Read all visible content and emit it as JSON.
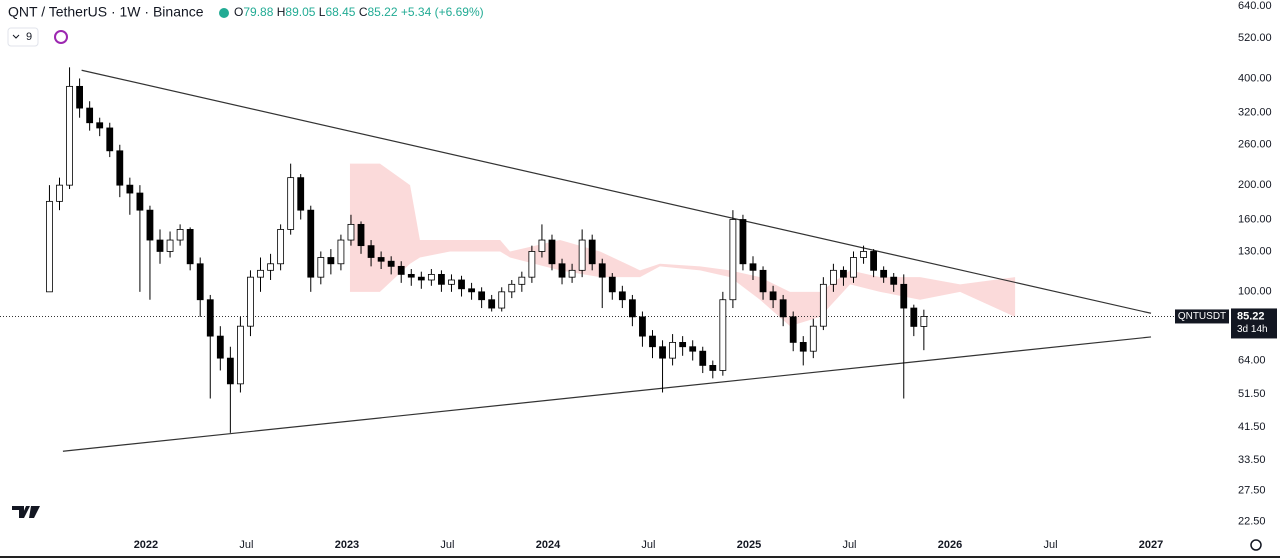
{
  "chart_data": {
    "type": "candlestick",
    "title": "QNT / TetherUS · 1W · Binance",
    "legend_labels": {
      "open": "O",
      "high": "H",
      "low": "L",
      "close": "C"
    },
    "change": "+5.34",
    "change_pct": "(+6.69%)",
    "indicator_count": 9,
    "symbol_tag": "QNTUSDT",
    "countdown": "3d 14h",
    "log_scale": true,
    "up_color": "#ffffff",
    "down_color": "#000000",
    "wick_color": "#000000",
    "x": [
      2021.52,
      2021.57,
      2021.62,
      2021.67,
      2021.72,
      2021.77,
      2021.82,
      2021.87,
      2021.92,
      2021.97,
      2022.02,
      2022.07,
      2022.12,
      2022.17,
      2022.22,
      2022.27,
      2022.32,
      2022.37,
      2022.42,
      2022.47,
      2022.52,
      2022.57,
      2022.62,
      2022.67,
      2022.72,
      2022.77,
      2022.82,
      2022.87,
      2022.92,
      2022.97,
      2023.02,
      2023.07,
      2023.12,
      2023.17,
      2023.22,
      2023.27,
      2023.32,
      2023.37,
      2023.42,
      2023.47,
      2023.52,
      2023.57,
      2023.62,
      2023.67,
      2023.72,
      2023.77,
      2023.82,
      2023.87,
      2023.92,
      2023.97,
      2024.02,
      2024.07,
      2024.12,
      2024.17,
      2024.22,
      2024.27,
      2024.32,
      2024.37,
      2024.42,
      2024.47,
      2024.52,
      2024.57,
      2024.62,
      2024.67,
      2024.72,
      2024.77,
      2024.82,
      2024.87,
      2024.92,
      2024.97,
      2025.02,
      2025.07,
      2025.12,
      2025.17,
      2025.22,
      2025.27,
      2025.32,
      2025.37,
      2025.42,
      2025.47,
      2025.52,
      2025.57,
      2025.62,
      2025.67,
      2025.72,
      2025.77,
      2025.82,
      2025.87
    ],
    "open": [
      100,
      180,
      200,
      380,
      330,
      300,
      290,
      250,
      200,
      190,
      170,
      140,
      130,
      140,
      150,
      120,
      95,
      75,
      65,
      55,
      80,
      110,
      115,
      120,
      150,
      210,
      170,
      110,
      125,
      120,
      140,
      155,
      135,
      125,
      122,
      118,
      112,
      110,
      108,
      112,
      105,
      108,
      102,
      100,
      95,
      90,
      100,
      105,
      110,
      130,
      140,
      120,
      110,
      115,
      140,
      120,
      110,
      100,
      95,
      85,
      75,
      70,
      65,
      72,
      70,
      68,
      62,
      60,
      95,
      160,
      120,
      115,
      100,
      95,
      85,
      72,
      68,
      80,
      105,
      115,
      110,
      125,
      130,
      115,
      110,
      105,
      90,
      79.88
    ],
    "high": [
      200,
      210,
      430,
      400,
      345,
      310,
      300,
      260,
      210,
      200,
      175,
      150,
      148,
      155,
      152,
      125,
      98,
      80,
      70,
      85,
      115,
      125,
      128,
      155,
      230,
      215,
      175,
      130,
      132,
      145,
      165,
      158,
      140,
      130,
      126,
      122,
      116,
      114,
      116,
      115,
      112,
      111,
      106,
      103,
      98,
      103,
      108,
      114,
      135,
      155,
      145,
      124,
      120,
      150,
      145,
      124,
      113,
      104,
      98,
      88,
      78,
      73,
      76,
      75,
      73,
      70,
      64,
      100,
      170,
      165,
      126,
      118,
      104,
      98,
      88,
      75,
      84,
      110,
      120,
      118,
      130,
      135,
      132,
      118,
      113,
      112,
      92,
      89.05
    ],
    "low": [
      100,
      170,
      195,
      310,
      285,
      275,
      240,
      185,
      165,
      100,
      95,
      120,
      125,
      135,
      115,
      85,
      50,
      60,
      40,
      52,
      75,
      100,
      108,
      115,
      145,
      160,
      100,
      105,
      112,
      115,
      135,
      128,
      118,
      116,
      112,
      106,
      104,
      102,
      104,
      100,
      100,
      97,
      95,
      90,
      88,
      88,
      96,
      100,
      106,
      125,
      115,
      105,
      106,
      110,
      115,
      90,
      95,
      90,
      80,
      70,
      65,
      52,
      62,
      66,
      64,
      59,
      57,
      58,
      90,
      115,
      108,
      95,
      90,
      80,
      68,
      62,
      65,
      78,
      100,
      104,
      106,
      120,
      110,
      106,
      100,
      50,
      75,
      68.45
    ],
    "close": [
      180,
      200,
      380,
      330,
      300,
      290,
      250,
      200,
      190,
      170,
      140,
      130,
      140,
      150,
      120,
      95,
      75,
      65,
      55,
      80,
      110,
      115,
      120,
      150,
      210,
      170,
      110,
      125,
      120,
      140,
      155,
      135,
      125,
      122,
      118,
      112,
      110,
      108,
      112,
      105,
      108,
      102,
      100,
      95,
      90,
      100,
      105,
      110,
      130,
      140,
      120,
      110,
      115,
      140,
      120,
      110,
      100,
      95,
      85,
      75,
      70,
      65,
      72,
      70,
      68,
      62,
      60,
      95,
      160,
      120,
      115,
      100,
      95,
      85,
      72,
      68,
      80,
      105,
      115,
      110,
      125,
      130,
      115,
      110,
      105,
      90,
      79.88,
      85.22
    ],
    "cloud": {
      "color": "#f8bcbc",
      "x": [
        2023.015,
        2023.164,
        2023.314,
        2023.363,
        2023.513,
        2023.762,
        2023.811,
        2024.06,
        2024.259,
        2024.458,
        2024.557,
        2024.757,
        2024.906,
        2025.055,
        2025.204,
        2025.354,
        2025.503,
        2025.652,
        2025.851,
        2026.05,
        2026.324
      ],
      "upper": [
        230,
        230,
        200,
        140,
        140,
        140,
        130,
        140,
        130,
        115,
        120,
        118,
        115,
        110,
        100,
        100,
        115,
        110,
        110,
        105,
        110
      ],
      "lower": [
        100,
        100,
        120,
        125,
        130,
        130,
        125,
        115,
        110,
        110,
        118,
        115,
        110,
        95,
        80,
        85,
        105,
        100,
        95,
        100,
        85
      ]
    },
    "trendlines": [
      {
        "from": [
          2021.68,
          422
        ],
        "to": [
          2027.0,
          87
        ]
      },
      {
        "from": [
          2021.587,
          35.5
        ],
        "to": [
          2027.0,
          74.6
        ]
      }
    ],
    "xlim": [
      2021.274,
      2027.393
    ],
    "xticks": [
      {
        "value": 2022,
        "label": "2022"
      },
      {
        "value": 2022.5,
        "label": "Jul"
      },
      {
        "value": 2023,
        "label": "2023"
      },
      {
        "value": 2023.5,
        "label": "Jul"
      },
      {
        "value": 2024,
        "label": "2024"
      },
      {
        "value": 2024.5,
        "label": "Jul"
      },
      {
        "value": 2025,
        "label": "2025"
      },
      {
        "value": 2025.5,
        "label": "Jul"
      },
      {
        "value": 2026,
        "label": "2026"
      },
      {
        "value": 2026.5,
        "label": "Jul"
      },
      {
        "value": 2027,
        "label": "2027"
      }
    ],
    "ylim": [
      20.6,
      666
    ],
    "yticks": [
      {
        "value": 640,
        "label": "640.00"
      },
      {
        "value": 520,
        "label": "520.00"
      },
      {
        "value": 400,
        "label": "400.00"
      },
      {
        "value": 320,
        "label": "320.00"
      },
      {
        "value": 260,
        "label": "260.00"
      },
      {
        "value": 200,
        "label": "200.00"
      },
      {
        "value": 160,
        "label": "160.00"
      },
      {
        "value": 130,
        "label": "130.00"
      },
      {
        "value": 100,
        "label": "100.00"
      },
      {
        "value": 64,
        "label": "64.00"
      },
      {
        "value": 51.5,
        "label": "51.50"
      },
      {
        "value": 41.5,
        "label": "41.50"
      },
      {
        "value": 33.5,
        "label": "33.50"
      },
      {
        "value": 27.5,
        "label": "27.50"
      },
      {
        "value": 22.5,
        "label": "22.50"
      }
    ]
  }
}
